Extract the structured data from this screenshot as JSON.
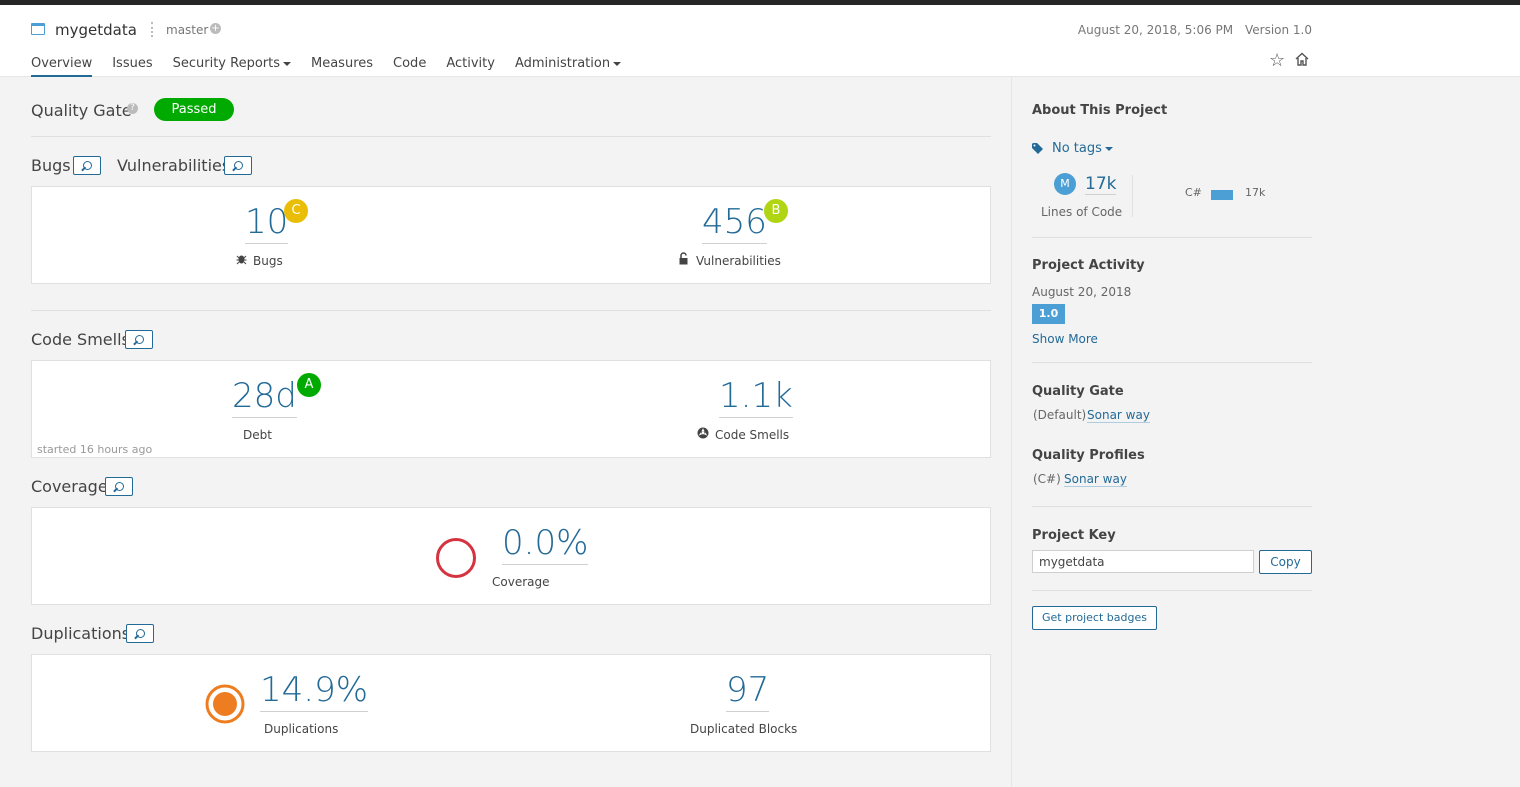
{
  "header": {
    "project_name": "mygetdata",
    "branch": "master",
    "branch_plus": "+",
    "date": "August 20, 2018, 5:06 PM",
    "version": "Version 1.0",
    "nav": {
      "overview": "Overview",
      "issues": "Issues",
      "security_reports": "Security Reports",
      "measures": "Measures",
      "code": "Code",
      "activity": "Activity",
      "administration": "Administration"
    },
    "star_glyph": "☆"
  },
  "quality_gate": {
    "label": "Quality Gate",
    "help": "?",
    "status": "Passed"
  },
  "bugs_vulns": {
    "bugs_title": "Bugs",
    "vulns_title": "Vulnerabilities",
    "bugs_value": "10",
    "bugs_rating": "C",
    "bugs_label": "Bugs",
    "vulns_value": "456",
    "vulns_rating": "B",
    "vulns_label": "Vulnerabilities"
  },
  "code_smells": {
    "title": "Code Smells",
    "debt_value": "28d",
    "debt_rating": "A",
    "debt_label": "Debt",
    "started": "started 16 hours ago",
    "smells_value": "1.1k",
    "smells_label": "Code Smells"
  },
  "coverage": {
    "title": "Coverage",
    "value": "0.0%",
    "label": "Coverage"
  },
  "duplications": {
    "title": "Duplications",
    "dup_value": "14.9%",
    "dup_label": "Duplications",
    "blocks_value": "97",
    "blocks_label": "Duplicated Blocks"
  },
  "sidebar": {
    "about_title": "About This Project",
    "tags": "No tags",
    "loc_avatar": "M",
    "loc_value": "17k",
    "loc_label": "Lines of Code",
    "lang_name": "C#",
    "lang_value": "17k",
    "activity_title": "Project Activity",
    "activity_date": "August 20, 2018",
    "activity_version": "1.0",
    "show_more": "Show More",
    "qg_title": "Quality Gate",
    "qg_default": "(Default)",
    "qg_link": "Sonar way",
    "qp_title": "Quality Profiles",
    "qp_lang": "(C#)",
    "qp_link": "Sonar way",
    "key_title": "Project Key",
    "key_value": "mygetdata",
    "copy_label": "Copy",
    "badges_label": "Get project badges"
  },
  "colors": {
    "accent": "#236a97",
    "passed": "#00aa00",
    "rating_a": "#00aa00",
    "rating_b": "#b0d513",
    "rating_c": "#eabe06",
    "coverage_ring": "#d4333f",
    "duplication": "#ed7d20"
  }
}
